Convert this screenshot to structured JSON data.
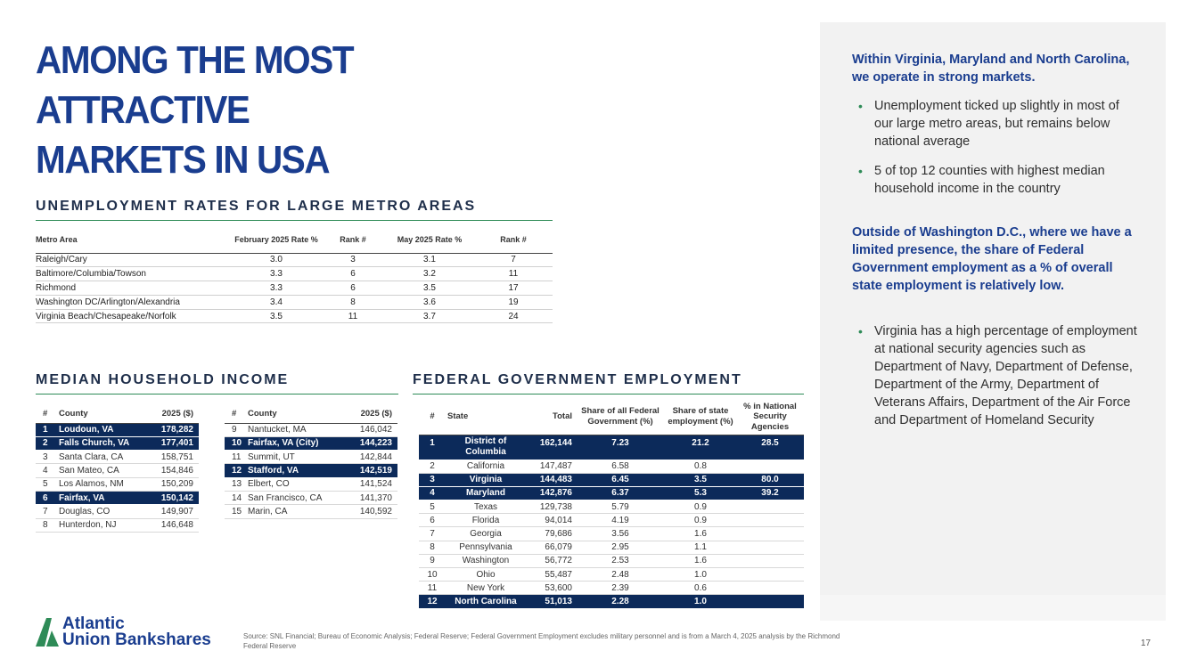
{
  "title": {
    "line1": "AMONG THE MOST ATTRACTIVE",
    "line2": "MARKETS IN USA"
  },
  "unemployment": {
    "heading": "UNEMPLOYMENT RATES FOR LARGE METRO AREAS",
    "columns": [
      "Metro Area",
      "February 2025 Rate %",
      "Rank #",
      "May 2025 Rate %",
      "Rank #"
    ],
    "rows": [
      [
        "Raleigh/Cary",
        "3.0",
        "3",
        "3.1",
        "7"
      ],
      [
        "Baltimore/Columbia/Towson",
        "3.3",
        "6",
        "3.2",
        "11"
      ],
      [
        "Richmond",
        "3.3",
        "6",
        "3.5",
        "17"
      ],
      [
        "Washington DC/Arlington/Alexandria",
        "3.4",
        "8",
        "3.6",
        "19"
      ],
      [
        "Virginia Beach/Chesapeake/Norfolk",
        "3.5",
        "11",
        "3.7",
        "24"
      ]
    ]
  },
  "median_income": {
    "heading": "MEDIAN HOUSEHOLD INCOME",
    "columns": [
      "#",
      "County",
      "2025 ($)"
    ],
    "left": [
      [
        "1",
        "Loudoun, VA",
        "178,282"
      ],
      [
        "2",
        "Falls Church, VA",
        "177,401"
      ],
      [
        "3",
        "Santa Clara, CA",
        "158,751"
      ],
      [
        "4",
        "San Mateo, CA",
        "154,846"
      ],
      [
        "5",
        "Los Alamos, NM",
        "150,209"
      ],
      [
        "6",
        "Fairfax, VA",
        "150,142"
      ],
      [
        "7",
        "Douglas, CO",
        "149,907"
      ],
      [
        "8",
        "Hunterdon, NJ",
        "146,648"
      ]
    ],
    "right": [
      [
        "9",
        "Nantucket, MA",
        "146,042"
      ],
      [
        "10",
        "Fairfax, VA (City)",
        "144,223"
      ],
      [
        "11",
        "Summit, UT",
        "142,844"
      ],
      [
        "12",
        "Stafford, VA",
        "142,519"
      ],
      [
        "13",
        "Elbert, CO",
        "141,524"
      ],
      [
        "14",
        "San Francisco, CA",
        "141,370"
      ],
      [
        "15",
        "Marin, CA",
        "140,592"
      ]
    ]
  },
  "federal": {
    "heading": "FEDERAL GOVERNMENT EMPLOYMENT",
    "columns": [
      "#",
      "State",
      "Total",
      "Share of all Federal Government (%)",
      "Share of state employment (%)",
      "% in National Security Agencies"
    ],
    "rows": [
      [
        "1",
        "District of Columbia",
        "162,144",
        "7.23",
        "21.2",
        "28.5"
      ],
      [
        "2",
        "California",
        "147,487",
        "6.58",
        "0.8",
        ""
      ],
      [
        "3",
        "Virginia",
        "144,483",
        "6.45",
        "3.5",
        "80.0"
      ],
      [
        "4",
        "Maryland",
        "142,876",
        "6.37",
        "5.3",
        "39.2"
      ],
      [
        "5",
        "Texas",
        "129,738",
        "5.79",
        "0.9",
        ""
      ],
      [
        "6",
        "Florida",
        "94,014",
        "4.19",
        "0.9",
        ""
      ],
      [
        "7",
        "Georgia",
        "79,686",
        "3.56",
        "1.6",
        ""
      ],
      [
        "8",
        "Pennsylvania",
        "66,079",
        "2.95",
        "1.1",
        ""
      ],
      [
        "9",
        "Washington",
        "56,772",
        "2.53",
        "1.6",
        ""
      ],
      [
        "10",
        "Ohio",
        "55,487",
        "2.48",
        "1.0",
        ""
      ],
      [
        "11",
        "New York",
        "53,600",
        "2.39",
        "0.6",
        ""
      ],
      [
        "12",
        "North Carolina",
        "51,013",
        "2.28",
        "1.0",
        ""
      ]
    ]
  },
  "panel": {
    "heading1": "Within Virginia, Maryland and North Carolina, we operate in strong markets.",
    "bullets1": [
      "Unemployment ticked up slightly in most of our large metro areas, but remains below national average",
      "5 of top 12 counties with highest median household income in the country"
    ],
    "heading2": "Outside of Washington D.C., where we have a limited presence, the share of Federal Government employment as a % of overall state employment is relatively low.",
    "bullets2": [
      "Virginia has a high percentage of employment at national security agencies such as Department of Navy, Department of Defense, Department of the Army, Department of Veterans Affairs, Department of the Air Force and Department of Homeland Security"
    ],
    "bullet_glyph": "•"
  },
  "footer": {
    "logo_line1": "Atlantic",
    "logo_line2": "Union Bankshares",
    "source": "Source: SNL Financial; Bureau of Economic Analysis; Federal Reserve; Federal Government Employment excludes military personnel and is from a March 4, 2025 analysis by the Richmond Federal Reserve",
    "page_number": "17"
  },
  "colors": {
    "brand_blue": "#1a3d8f",
    "navy_highlight": "#0c2a5a",
    "accent_green": "#2e8b57",
    "panel_bg": "#f2f2f2"
  }
}
